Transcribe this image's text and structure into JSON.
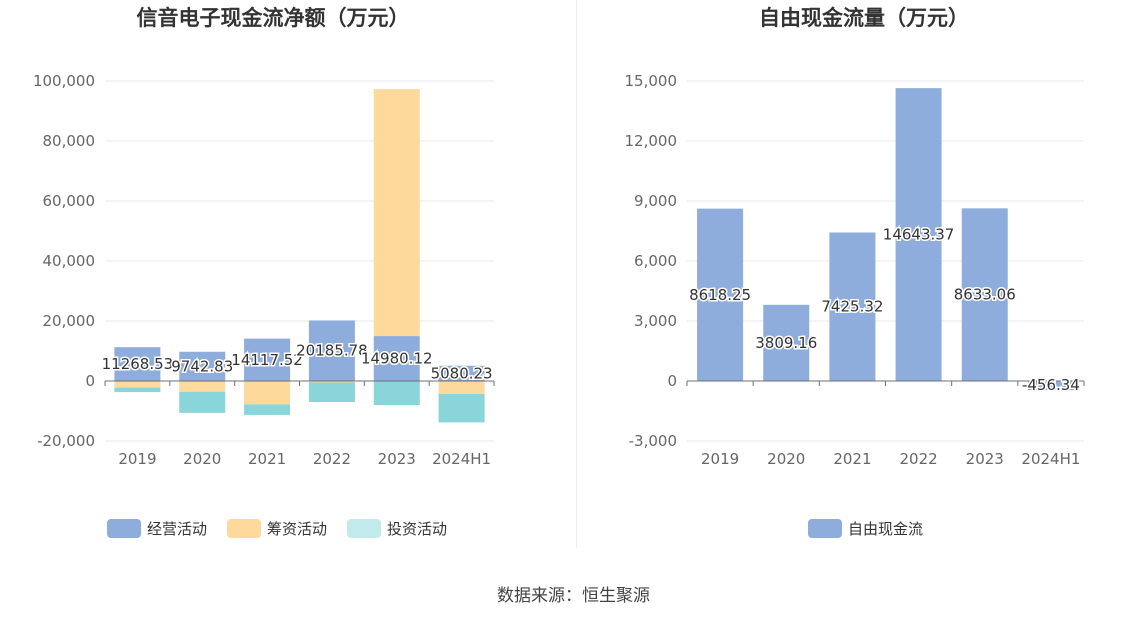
{
  "source_text": "数据来源：恒生聚源",
  "chart_data": [
    {
      "type": "bar",
      "stacked": true,
      "title": "信音电子现金流净额（万元）",
      "categories": [
        "2019",
        "2020",
        "2021",
        "2022",
        "2023",
        "2024H1"
      ],
      "ylim": [
        -20000,
        100000
      ],
      "yticks": [
        -20000,
        0,
        20000,
        40000,
        60000,
        80000,
        100000
      ],
      "ytick_labels": [
        "-20,000",
        "0",
        "20,000",
        "40,000",
        "60,000",
        "80,000",
        "100,000"
      ],
      "grid": true,
      "legend_position": "bottom",
      "series": [
        {
          "name": "经营活动",
          "color": "#8eaddc",
          "values": [
            11268.53,
            9742.83,
            14117.52,
            20185.78,
            14980.12,
            5080.23
          ],
          "data_labels": [
            "11268.53",
            "9742.83",
            "14117.52",
            "20185.78",
            "14980.12",
            "5080.23"
          ]
        },
        {
          "name": "筹资活动",
          "color": "#fdd99b",
          "values": [
            -2200,
            -3600,
            -7800,
            -500,
            82300,
            -4300
          ]
        },
        {
          "name": "投资活动",
          "color": "#89d5d9",
          "legend_color": "#c2e9eb",
          "values": [
            -1500,
            -7000,
            -3500,
            -6500,
            -8000,
            -9500
          ]
        }
      ]
    },
    {
      "type": "bar",
      "title": "自由现金流量（万元）",
      "categories": [
        "2019",
        "2020",
        "2021",
        "2022",
        "2023",
        "2024H1"
      ],
      "ylim": [
        -3000,
        15000
      ],
      "yticks": [
        -3000,
        0,
        3000,
        6000,
        9000,
        12000,
        15000
      ],
      "ytick_labels": [
        "-3,000",
        "0",
        "3,000",
        "6,000",
        "9,000",
        "12,000",
        "15,000"
      ],
      "grid": true,
      "legend_position": "bottom",
      "series": [
        {
          "name": "自由现金流",
          "color": "#8eaddc",
          "values": [
            8618.25,
            3809.16,
            7425.32,
            14643.37,
            8633.06,
            -456.34
          ],
          "data_labels": [
            "8618.25",
            "3809.16",
            "7425.32",
            "14643.37",
            "8633.06",
            "-456.34"
          ]
        }
      ]
    }
  ]
}
